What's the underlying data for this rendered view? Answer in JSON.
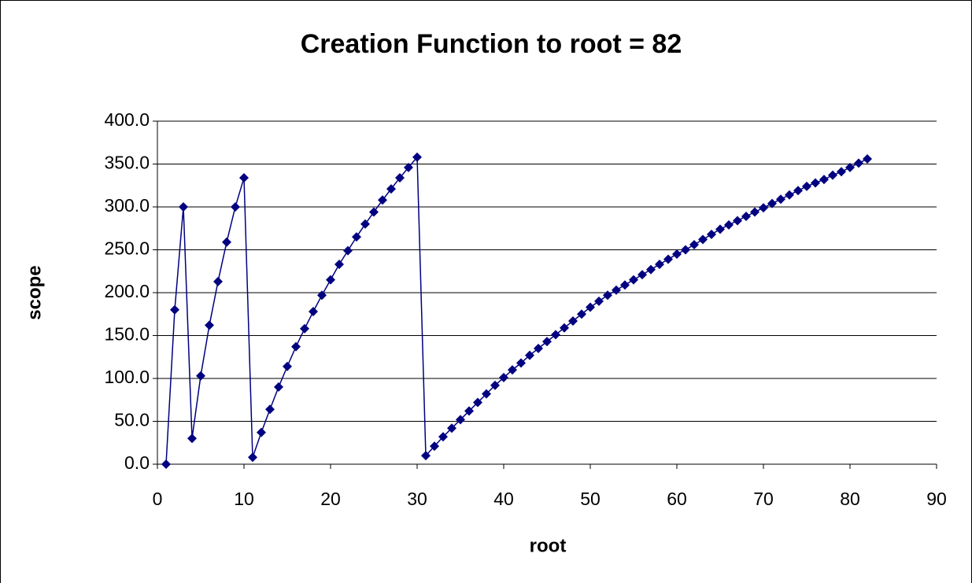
{
  "chart_data": {
    "type": "scatter-line",
    "title": "Creation Function to root = 82",
    "x_label": "root",
    "y_label": "scope",
    "color": "#000080",
    "grid": true,
    "x": [
      1,
      2,
      3,
      4,
      5,
      6,
      7,
      8,
      9,
      10,
      11,
      12,
      13,
      14,
      15,
      16,
      17,
      18,
      19,
      20,
      21,
      22,
      23,
      24,
      25,
      26,
      27,
      28,
      29,
      30,
      31,
      32,
      33,
      34,
      35,
      36,
      37,
      38,
      39,
      40,
      41,
      42,
      43,
      44,
      45,
      46,
      47,
      48,
      49,
      50,
      51,
      52,
      53,
      54,
      55,
      56,
      57,
      58,
      59,
      60,
      61,
      62,
      63,
      64,
      65,
      66,
      67,
      68,
      69,
      70,
      71,
      72,
      73,
      74,
      75,
      76,
      77,
      78,
      79,
      80,
      81,
      82
    ],
    "values": [
      0,
      180,
      300,
      30,
      103,
      162,
      213,
      259,
      300,
      334,
      8,
      37,
      64,
      90,
      114,
      137,
      158,
      178,
      197,
      215,
      233,
      249,
      265,
      280,
      294,
      308,
      321,
      334,
      346,
      358,
      10,
      21,
      32,
      42,
      52,
      62,
      72,
      82,
      92,
      101,
      110,
      118,
      127,
      135,
      143,
      151,
      159,
      167,
      175,
      183,
      190,
      197,
      203,
      209,
      215,
      221,
      227,
      233,
      239,
      245,
      250,
      256,
      262,
      268,
      274,
      279,
      284,
      289,
      294,
      299,
      304,
      309,
      314,
      319,
      324,
      328,
      332,
      337,
      341,
      346,
      351,
      356
    ],
    "xlim": [
      0,
      90
    ],
    "xticks": [
      0,
      10,
      20,
      30,
      40,
      50,
      60,
      70,
      80,
      90
    ],
    "ylim": [
      0,
      400
    ],
    "yticks": [
      {
        "value": 0,
        "label": "0.0"
      },
      {
        "value": 50,
        "label": "50.0"
      },
      {
        "value": 100,
        "label": "100.0"
      },
      {
        "value": 150,
        "label": "150.0"
      },
      {
        "value": 200,
        "label": "200.0"
      },
      {
        "value": 250,
        "label": "250.0"
      },
      {
        "value": 300,
        "label": "300.0"
      },
      {
        "value": 350,
        "label": "350.0"
      },
      {
        "value": 400,
        "label": "400.0"
      }
    ]
  }
}
